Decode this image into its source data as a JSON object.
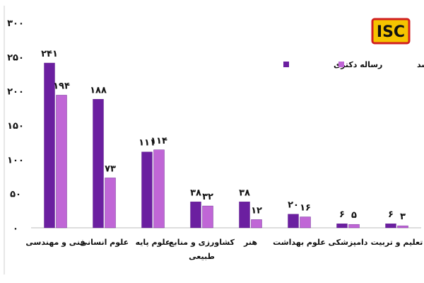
{
  "logo": {
    "text": "ISC",
    "bg_color": "#f5c400",
    "border_color": "#d11f1f"
  },
  "chart_data": {
    "type": "bar",
    "categories": [
      "فنی و مهندسی",
      "علوم انسانی",
      "علوم پایه",
      "کشاورزی و منابع طبیعی",
      "هنر",
      "علوم بهداشت",
      "دامپزشکی",
      "تعلیم و تربیت"
    ],
    "series": [
      {
        "name": "رساله دکتری",
        "color": "#6b1fa0",
        "values": [
          241,
          188,
          111,
          38,
          38,
          20,
          6,
          6
        ]
      },
      {
        "name": "پایان نامه کارشناسی ارشد",
        "color": "#c066d6",
        "values": [
          194,
          73,
          114,
          32,
          12,
          16,
          5,
          3
        ]
      }
    ],
    "ylim": [
      0,
      300
    ],
    "yticks": [
      0,
      50,
      100,
      150,
      200,
      250,
      300
    ],
    "ytick_labels": [
      "۰",
      "۵۰",
      "۱۰۰",
      "۱۵۰",
      "۲۰۰",
      "۲۵۰",
      "۳۰۰"
    ],
    "data_labels": [
      [
        "۲۴۱",
        "۱۸۸",
        "۱۱۱",
        "۳۸",
        "۳۸",
        "۲۰",
        "۶",
        "۶"
      ],
      [
        "۱۹۴",
        "۷۳",
        "۱۱۴",
        "۳۲",
        "۱۲",
        "۱۶",
        "۵",
        "۳"
      ]
    ],
    "title": "",
    "xlabel": "",
    "ylabel": "",
    "legend": "top-right",
    "grid": false
  }
}
